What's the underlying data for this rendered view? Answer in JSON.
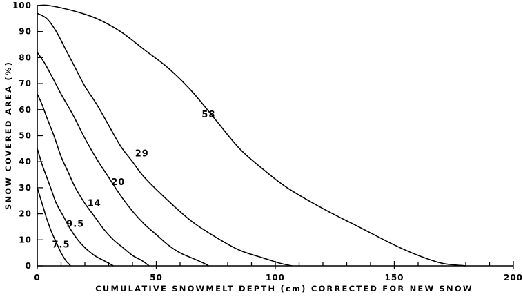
{
  "chart_data": {
    "type": "line",
    "xlabel": "CUMULATIVE SNOWMELT DEPTH (cm) CORRECTED FOR NEW SNOW",
    "ylabel": "SNOW COVERED AREA (%)",
    "xlim": [
      0,
      200
    ],
    "ylim": [
      0,
      100
    ],
    "x_ticks": [
      0,
      50,
      100,
      150,
      200
    ],
    "y_ticks": [
      0,
      10,
      20,
      30,
      40,
      50,
      60,
      70,
      80,
      90,
      100
    ],
    "x_tick_labels": [
      "0",
      "50",
      "100",
      "150",
      "200"
    ],
    "y_tick_labels": [
      "0",
      "10",
      "20",
      "30",
      "40",
      "50",
      "60",
      "70",
      "80",
      "90",
      "100"
    ],
    "grid": false,
    "series": [
      {
        "name": "58",
        "points": [
          [
            0,
            100
          ],
          [
            5,
            100
          ],
          [
            15,
            98
          ],
          [
            25,
            95
          ],
          [
            35,
            90
          ],
          [
            45,
            83
          ],
          [
            55,
            76
          ],
          [
            65,
            67
          ],
          [
            75,
            56
          ],
          [
            85,
            45
          ],
          [
            95,
            37
          ],
          [
            105,
            30
          ],
          [
            120,
            22
          ],
          [
            135,
            15
          ],
          [
            150,
            8
          ],
          [
            160,
            4
          ],
          [
            170,
            1
          ],
          [
            180,
            0
          ]
        ]
      },
      {
        "name": "29",
        "points": [
          [
            0,
            97
          ],
          [
            4,
            95
          ],
          [
            8,
            90
          ],
          [
            12,
            83
          ],
          [
            16,
            76
          ],
          [
            20,
            69
          ],
          [
            25,
            62
          ],
          [
            30,
            54
          ],
          [
            35,
            46
          ],
          [
            40,
            40
          ],
          [
            45,
            34
          ],
          [
            55,
            25
          ],
          [
            65,
            17
          ],
          [
            75,
            11
          ],
          [
            85,
            6
          ],
          [
            95,
            3
          ],
          [
            102,
            1
          ],
          [
            107,
            0
          ]
        ]
      },
      {
        "name": "20",
        "points": [
          [
            0,
            82
          ],
          [
            3,
            78
          ],
          [
            6,
            73
          ],
          [
            10,
            66
          ],
          [
            15,
            58
          ],
          [
            20,
            49
          ],
          [
            25,
            41
          ],
          [
            30,
            34
          ],
          [
            35,
            27
          ],
          [
            40,
            21
          ],
          [
            45,
            16
          ],
          [
            50,
            12
          ],
          [
            55,
            8
          ],
          [
            60,
            5
          ],
          [
            65,
            3
          ],
          [
            70,
            1
          ],
          [
            72,
            0
          ]
        ]
      },
      {
        "name": "14",
        "points": [
          [
            0,
            66
          ],
          [
            2,
            62
          ],
          [
            4,
            57
          ],
          [
            7,
            50
          ],
          [
            10,
            42
          ],
          [
            13,
            36
          ],
          [
            16,
            30
          ],
          [
            20,
            24
          ],
          [
            24,
            19
          ],
          [
            28,
            14
          ],
          [
            32,
            10
          ],
          [
            36,
            7
          ],
          [
            40,
            4
          ],
          [
            44,
            2
          ],
          [
            47,
            0
          ]
        ]
      },
      {
        "name": "9.5",
        "points": [
          [
            0,
            45
          ],
          [
            1,
            42
          ],
          [
            2,
            39
          ],
          [
            4,
            34
          ],
          [
            6,
            29
          ],
          [
            8,
            24
          ],
          [
            11,
            19
          ],
          [
            14,
            14
          ],
          [
            17,
            10
          ],
          [
            20,
            7
          ],
          [
            24,
            4
          ],
          [
            28,
            2
          ],
          [
            32,
            0
          ]
        ]
      },
      {
        "name": "7.5",
        "points": [
          [
            0,
            30
          ],
          [
            1,
            27
          ],
          [
            2,
            24
          ],
          [
            3,
            21
          ],
          [
            4,
            18
          ],
          [
            6,
            13
          ],
          [
            8,
            9
          ],
          [
            10,
            5
          ],
          [
            12,
            2
          ],
          [
            13,
            1
          ],
          [
            14,
            0
          ]
        ]
      }
    ],
    "annotations": [
      {
        "text": "58",
        "x": 72,
        "y": 57
      },
      {
        "text": "29",
        "x": 44,
        "y": 42
      },
      {
        "text": "20",
        "x": 34,
        "y": 31
      },
      {
        "text": "14",
        "x": 24,
        "y": 23
      },
      {
        "text": "9.5",
        "x": 16,
        "y": 15
      },
      {
        "text": "7.5",
        "x": 10,
        "y": 7
      }
    ]
  }
}
